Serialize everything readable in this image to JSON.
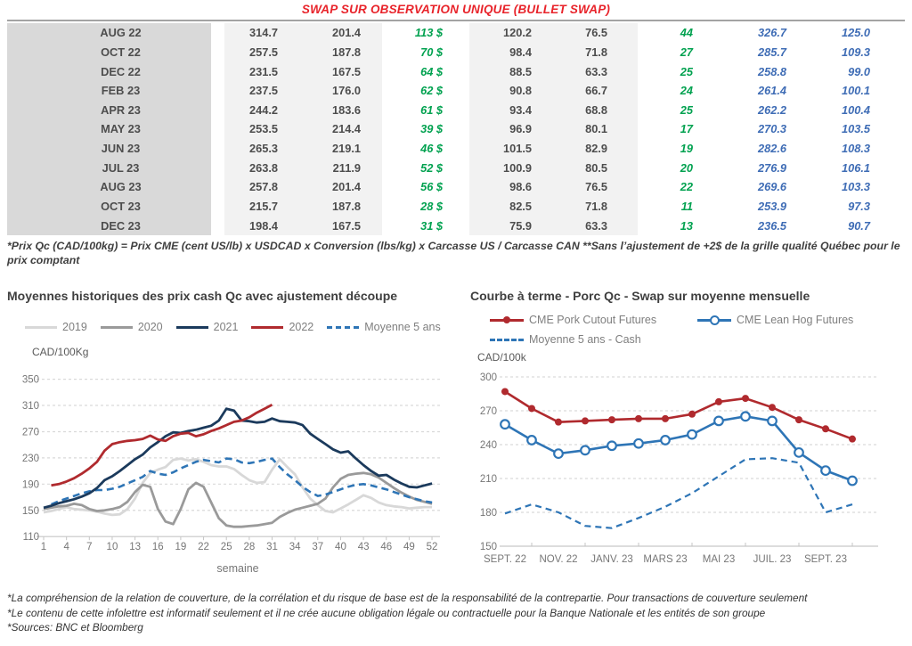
{
  "title": "SWAP SUR OBSERVATION UNIQUE (BULLET SWAP)",
  "table": {
    "rows": [
      [
        "AUG 22",
        "314.7",
        "201.4",
        "113 $",
        "120.2",
        "76.5",
        "44",
        "326.7",
        "125.0"
      ],
      [
        "OCT 22",
        "257.5",
        "187.8",
        "70 $",
        "98.4",
        "71.8",
        "27",
        "285.7",
        "109.3"
      ],
      [
        "DEC 22",
        "231.5",
        "167.5",
        "64 $",
        "88.5",
        "63.3",
        "25",
        "258.8",
        "99.0"
      ],
      [
        "FEB 23",
        "237.5",
        "176.0",
        "62 $",
        "90.8",
        "66.7",
        "24",
        "261.4",
        "100.1"
      ],
      [
        "APR 23",
        "244.2",
        "183.6",
        "61 $",
        "93.4",
        "68.8",
        "25",
        "262.2",
        "100.4"
      ],
      [
        "MAY 23",
        "253.5",
        "214.4",
        "39 $",
        "96.9",
        "80.1",
        "17",
        "270.3",
        "103.5"
      ],
      [
        "JUN 23",
        "265.3",
        "219.1",
        "46 $",
        "101.5",
        "82.9",
        "19",
        "282.6",
        "108.3"
      ],
      [
        "JUL 23",
        "263.8",
        "211.9",
        "52 $",
        "100.9",
        "80.5",
        "20",
        "276.9",
        "106.1"
      ],
      [
        "AUG 23",
        "257.8",
        "201.4",
        "56 $",
        "98.6",
        "76.5",
        "22",
        "269.6",
        "103.3"
      ],
      [
        "OCT 23",
        "215.7",
        "187.8",
        "28 $",
        "82.5",
        "71.8",
        "11",
        "253.9",
        "97.3"
      ],
      [
        "DEC 23",
        "198.4",
        "167.5",
        "31 $",
        "75.9",
        "63.3",
        "13",
        "236.5",
        "90.7"
      ]
    ]
  },
  "table_note": "*Prix Qc (CAD/100kg) = Prix CME (cent US/lb) x USDCAD x Conversion (lbs/kg) x Carcasse US / Carcasse CAN **Sans l’ajustement de +2$ de la grille qualité Québec pour le prix comptant",
  "chart_data": [
    {
      "type": "line",
      "title": "Moyennes historiques des prix cash Qc avec ajustement découpe",
      "ylabel": "CAD/100Kg",
      "xlabel": "semaine",
      "xlim": [
        1,
        52
      ],
      "ylim": [
        110,
        350
      ],
      "grid": true,
      "legend_position": "top",
      "xticks": [
        1,
        4,
        7,
        10,
        13,
        16,
        19,
        22,
        25,
        28,
        31,
        34,
        37,
        40,
        43,
        46,
        49,
        52
      ],
      "yticks": [
        110,
        150,
        190,
        230,
        270,
        310,
        350
      ],
      "series": [
        {
          "name": "2019",
          "color": "#d8d8d8",
          "values": [
            147,
            149,
            152,
            155,
            152,
            151,
            150,
            148,
            145,
            143,
            144,
            152,
            168,
            192,
            207,
            212,
            216,
            227,
            229,
            226,
            228,
            224,
            219,
            217,
            217,
            213,
            204,
            196,
            192,
            193,
            212,
            228,
            216,
            205,
            185,
            168,
            158,
            149,
            147,
            153,
            159,
            166,
            173,
            169,
            162,
            158,
            156,
            155,
            153,
            154,
            155,
            155
          ]
        },
        {
          "name": "2020",
          "color": "#9a9a9a",
          "values": [
            152,
            154,
            156,
            157,
            160,
            158,
            152,
            149,
            150,
            152,
            155,
            163,
            178,
            189,
            186,
            152,
            133,
            129,
            152,
            182,
            192,
            186,
            162,
            138,
            127,
            125,
            125,
            126,
            127,
            129,
            131,
            140,
            146,
            151,
            154,
            157,
            160,
            168,
            185,
            198,
            204,
            206,
            207,
            205,
            200,
            192,
            184,
            177,
            171,
            166,
            163,
            160
          ]
        },
        {
          "name": "2021",
          "color": "#1b3a5c",
          "values": [
            154,
            157,
            161,
            164,
            167,
            171,
            176,
            184,
            196,
            202,
            210,
            219,
            228,
            235,
            246,
            254,
            263,
            269,
            268,
            271,
            273,
            276,
            279,
            287,
            305,
            302,
            287,
            286,
            284,
            285,
            290,
            286,
            285,
            284,
            280,
            267,
            259,
            251,
            243,
            238,
            240,
            229,
            219,
            210,
            203,
            204,
            197,
            191,
            186,
            185,
            188,
            191
          ]
        },
        {
          "name": "2022",
          "color": "#b02a2e",
          "values": [
            null,
            188,
            190,
            194,
            199,
            206,
            214,
            224,
            241,
            251,
            254,
            256,
            257,
            259,
            264,
            258,
            256,
            263,
            267,
            268,
            263,
            266,
            271,
            275,
            280,
            285,
            287,
            292,
            299,
            305,
            311,
            null,
            null,
            null,
            null,
            null,
            null,
            null,
            null,
            null,
            null,
            null,
            null,
            null,
            null,
            null,
            null,
            null,
            null,
            null,
            null,
            null
          ]
        },
        {
          "name": "Moyenne 5 ans",
          "color": "#2e75b6",
          "dash": true,
          "values": [
            null,
            159,
            164,
            168,
            172,
            176,
            179,
            181,
            181,
            183,
            186,
            191,
            196,
            201,
            210,
            206,
            204,
            208,
            214,
            219,
            224,
            227,
            225,
            223,
            229,
            228,
            223,
            222,
            224,
            227,
            229,
            216,
            205,
            196,
            186,
            178,
            172,
            174,
            178,
            182,
            186,
            189,
            190,
            188,
            185,
            182,
            178,
            174,
            170,
            167,
            164,
            162
          ]
        }
      ]
    },
    {
      "type": "line",
      "title": "Courbe à terme - Porc Qc - Swap sur moyenne mensuelle",
      "ylabel": "CAD/100k",
      "n_points": 14,
      "xtick_labels": [
        "SEPT. 22",
        "NOV. 22",
        "JANV. 23",
        "MARS 23",
        "MAI 23",
        "JUIL. 23",
        "SEPT. 23"
      ],
      "xtick_indices": [
        0,
        2,
        4,
        6,
        8,
        10,
        12
      ],
      "yticks": [
        150,
        180,
        210,
        240,
        270,
        300
      ],
      "ylim": [
        150,
        300
      ],
      "grid": true,
      "legend_position": "top",
      "series": [
        {
          "name": "CME Pork Cutout Futures",
          "color": "#b02a2e",
          "marker": "filled",
          "values": [
            287,
            272,
            260,
            261,
            262,
            263,
            263,
            267,
            278,
            281,
            273,
            262,
            254,
            245
          ]
        },
        {
          "name": "CME Lean Hog Futures",
          "color": "#2e75b6",
          "marker": "open",
          "values": [
            258,
            244,
            232,
            235,
            239,
            241,
            244,
            249,
            261,
            265,
            261,
            233,
            217,
            208
          ]
        },
        {
          "name": "Moyenne 5 ans - Cash",
          "color": "#2e75b6",
          "dash": true,
          "values": [
            179,
            187,
            180,
            168,
            166,
            175,
            185,
            197,
            212,
            227,
            228,
            224,
            180,
            187
          ]
        }
      ]
    }
  ],
  "footer": {
    "lines": [
      "*La compréhension de la relation de couverture, de la corrélation et du risque de base est de la responsabilité de la contrepartie. Pour transactions de couverture seulement",
      "*Le contenu de cette infolettre est informatif seulement et il ne crée aucune obligation légale ou contractuelle pour la Banque Nationale et les entités de son groupe",
      "*Sources: BNC et Bloomberg"
    ]
  },
  "colors": {
    "title_red": "#e8232a",
    "table_green": "#00a14f",
    "table_blue": "#3e6cb5",
    "table_text": "#4d4d4d",
    "band_dark_gray": "#d9d9d9",
    "band_light_gray": "#f2f2f2",
    "series_navy": "#1b3a5c",
    "series_red": "#b02a2e",
    "series_blue": "#2e75b6"
  }
}
